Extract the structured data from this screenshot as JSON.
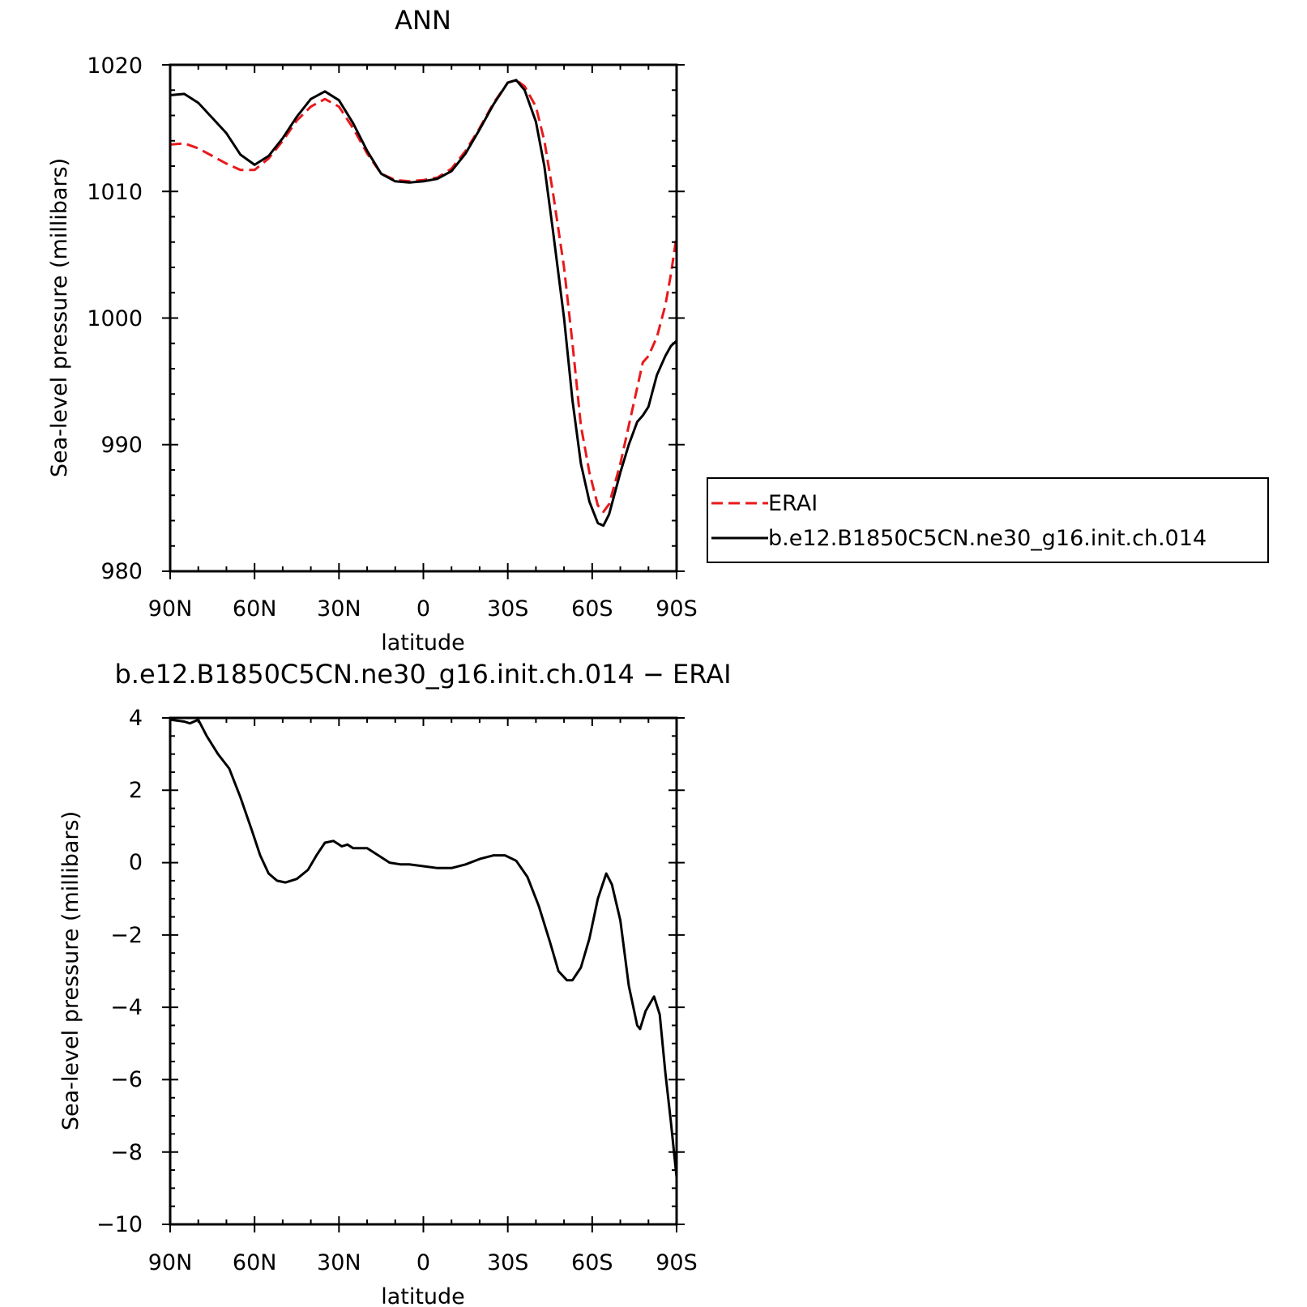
{
  "chart_data": [
    {
      "type": "line",
      "title": "ANN",
      "xlabel": "latitude",
      "ylabel": "Sea-level pressure (millibars)",
      "xlim": [
        90,
        -90
      ],
      "ylim": [
        980,
        1020
      ],
      "x_ticks": [
        90,
        60,
        30,
        0,
        -30,
        -60,
        -90
      ],
      "x_tick_labels": [
        "90N",
        "60N",
        "30N",
        "0",
        "30S",
        "60S",
        "90S"
      ],
      "y_ticks": [
        980,
        990,
        1000,
        1010,
        1020
      ],
      "y_tick_labels": [
        "980",
        "990",
        "1000",
        "1010",
        "1020"
      ],
      "legend": {
        "placement": "right"
      },
      "series": [
        {
          "name": "ERAI",
          "color": "#e8191b",
          "dash": "dashed",
          "points": [
            [
              90,
              1013.7
            ],
            [
              85,
              1013.8
            ],
            [
              80,
              1013.4
            ],
            [
              75,
              1012.8
            ],
            [
              70,
              1012.2
            ],
            [
              65,
              1011.7
            ],
            [
              60,
              1011.7
            ],
            [
              55,
              1012.6
            ],
            [
              50,
              1014.0
            ],
            [
              45,
              1015.6
            ],
            [
              40,
              1016.7
            ],
            [
              35,
              1017.3
            ],
            [
              30,
              1016.7
            ],
            [
              25,
              1015.0
            ],
            [
              20,
              1013.0
            ],
            [
              15,
              1011.4
            ],
            [
              10,
              1010.9
            ],
            [
              5,
              1010.8
            ],
            [
              0,
              1010.9
            ],
            [
              -5,
              1011.1
            ],
            [
              -10,
              1011.8
            ],
            [
              -15,
              1013.2
            ],
            [
              -20,
              1015.0
            ],
            [
              -25,
              1017.0
            ],
            [
              -30,
              1018.6
            ],
            [
              -33,
              1018.8
            ],
            [
              -36,
              1018.3
            ],
            [
              -40,
              1016.7
            ],
            [
              -43,
              1014.0
            ],
            [
              -46,
              1010.0
            ],
            [
              -50,
              1004.0
            ],
            [
              -53,
              998.0
            ],
            [
              -56,
              991.5
            ],
            [
              -59,
              987.8
            ],
            [
              -62,
              985.2
            ],
            [
              -64,
              984.7
            ],
            [
              -66,
              985.3
            ],
            [
              -70,
              988.5
            ],
            [
              -73,
              991.5
            ],
            [
              -76,
              994.5
            ],
            [
              -78,
              996.5
            ],
            [
              -80,
              997.0
            ],
            [
              -83,
              998.5
            ],
            [
              -86,
              1001.0
            ],
            [
              -88,
              1003.5
            ],
            [
              -90,
              1006.5
            ]
          ]
        },
        {
          "name": "b.e12.B1850C5CN.ne30_g16.init.ch.014",
          "color": "#000000",
          "dash": "solid",
          "points": [
            [
              90,
              1017.6
            ],
            [
              85,
              1017.7
            ],
            [
              80,
              1017.0
            ],
            [
              75,
              1015.8
            ],
            [
              70,
              1014.6
            ],
            [
              65,
              1012.9
            ],
            [
              60,
              1012.1
            ],
            [
              55,
              1012.8
            ],
            [
              50,
              1014.2
            ],
            [
              45,
              1015.9
            ],
            [
              40,
              1017.3
            ],
            [
              35,
              1017.9
            ],
            [
              30,
              1017.2
            ],
            [
              25,
              1015.4
            ],
            [
              20,
              1013.2
            ],
            [
              15,
              1011.4
            ],
            [
              10,
              1010.8
            ],
            [
              5,
              1010.7
            ],
            [
              0,
              1010.8
            ],
            [
              -5,
              1011.0
            ],
            [
              -10,
              1011.6
            ],
            [
              -15,
              1013.0
            ],
            [
              -20,
              1014.9
            ],
            [
              -25,
              1016.9
            ],
            [
              -30,
              1018.6
            ],
            [
              -33,
              1018.8
            ],
            [
              -36,
              1018.0
            ],
            [
              -40,
              1015.5
            ],
            [
              -43,
              1012.0
            ],
            [
              -46,
              1007.0
            ],
            [
              -50,
              1000.0
            ],
            [
              -53,
              993.5
            ],
            [
              -56,
              988.5
            ],
            [
              -59,
              985.5
            ],
            [
              -62,
              983.8
            ],
            [
              -64,
              983.6
            ],
            [
              -66,
              984.5
            ],
            [
              -70,
              987.8
            ],
            [
              -73,
              990.0
            ],
            [
              -76,
              991.8
            ],
            [
              -78,
              992.3
            ],
            [
              -80,
              993.0
            ],
            [
              -83,
              995.5
            ],
            [
              -86,
              997.0
            ],
            [
              -88,
              997.8
            ],
            [
              -90,
              998.2
            ]
          ]
        }
      ]
    },
    {
      "type": "line",
      "title": "b.e12.B1850C5CN.ne30_g16.init.ch.014 − ERAI",
      "xlabel": "latitude",
      "ylabel": "Sea-level pressure (millibars)",
      "xlim": [
        90,
        -90
      ],
      "ylim": [
        -10,
        4
      ],
      "x_ticks": [
        90,
        60,
        30,
        0,
        -30,
        -60,
        -90
      ],
      "x_tick_labels": [
        "90N",
        "60N",
        "30N",
        "0",
        "30S",
        "60S",
        "90S"
      ],
      "y_ticks": [
        -10,
        -8,
        -6,
        -4,
        -2,
        0,
        2,
        4
      ],
      "y_tick_labels": [
        "−10",
        "−8",
        "−6",
        "−4",
        "−2",
        "0",
        "2",
        "4"
      ],
      "series": [
        {
          "color": "#000000",
          "dash": "solid",
          "points": [
            [
              90,
              3.95
            ],
            [
              85,
              3.9
            ],
            [
              83,
              3.85
            ],
            [
              80,
              3.95
            ],
            [
              77,
              3.5
            ],
            [
              73,
              3.0
            ],
            [
              69,
              2.6
            ],
            [
              65,
              1.8
            ],
            [
              61,
              0.9
            ],
            [
              58,
              0.2
            ],
            [
              55,
              -0.3
            ],
            [
              52,
              -0.5
            ],
            [
              49,
              -0.55
            ],
            [
              45,
              -0.45
            ],
            [
              41,
              -0.2
            ],
            [
              38,
              0.2
            ],
            [
              35,
              0.55
            ],
            [
              32,
              0.6
            ],
            [
              29,
              0.45
            ],
            [
              27,
              0.5
            ],
            [
              25,
              0.4
            ],
            [
              20,
              0.4
            ],
            [
              16,
              0.2
            ],
            [
              12,
              0.0
            ],
            [
              8,
              -0.05
            ],
            [
              5,
              -0.05
            ],
            [
              0,
              -0.1
            ],
            [
              -5,
              -0.15
            ],
            [
              -10,
              -0.15
            ],
            [
              -15,
              -0.05
            ],
            [
              -20,
              0.1
            ],
            [
              -25,
              0.2
            ],
            [
              -29,
              0.2
            ],
            [
              -33,
              0.05
            ],
            [
              -37,
              -0.4
            ],
            [
              -41,
              -1.2
            ],
            [
              -45,
              -2.2
            ],
            [
              -48,
              -3.0
            ],
            [
              -51,
              -3.25
            ],
            [
              -53,
              -3.25
            ],
            [
              -56,
              -2.9
            ],
            [
              -59,
              -2.1
            ],
            [
              -62,
              -1.0
            ],
            [
              -65,
              -0.3
            ],
            [
              -67,
              -0.6
            ],
            [
              -70,
              -1.6
            ],
            [
              -73,
              -3.4
            ],
            [
              -76,
              -4.5
            ],
            [
              -77,
              -4.6
            ],
            [
              -79,
              -4.1
            ],
            [
              -82,
              -3.7
            ],
            [
              -84,
              -4.2
            ],
            [
              -86,
              -5.8
            ],
            [
              -88,
              -7.2
            ],
            [
              -90,
              -8.7
            ]
          ]
        }
      ]
    }
  ]
}
